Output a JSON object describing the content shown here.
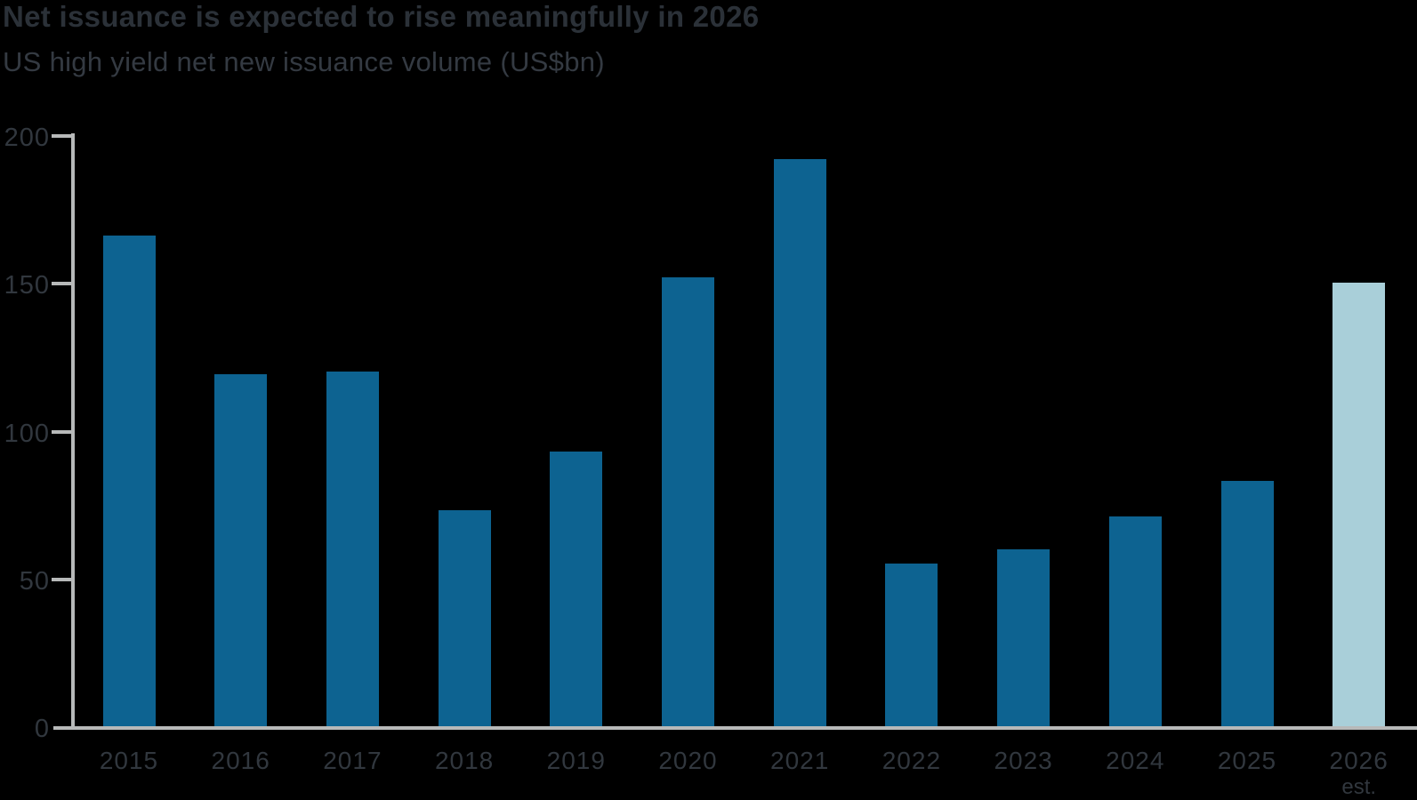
{
  "title": "Net issuance is expected to rise meaningfully in 2026",
  "subtitle": "US high yield net new issuance volume (US$bn)",
  "colors": {
    "background": "#000000",
    "bar_primary": "#0d6391",
    "bar_estimate": "#a9cfd9",
    "axis": "#b7b9b9",
    "text": "#31373e"
  },
  "chart_data": {
    "type": "bar",
    "title": "Net issuance is expected to rise meaningfully in 2026",
    "subtitle": "US high yield net new issuance volume (US$bn)",
    "categories": [
      "2015",
      "2016",
      "2017",
      "2018",
      "2019",
      "2020",
      "2021",
      "2022",
      "2023",
      "2024",
      "2025",
      "2026"
    ],
    "values": [
      166,
      119,
      120,
      73,
      93,
      152,
      192,
      55,
      60,
      71,
      83,
      150
    ],
    "estimate_category": "2026",
    "estimate_suffix": "est.",
    "series_note": "2026 bar is an estimate shown in light blue; all other bars dark blue",
    "xlabel": "",
    "ylabel": "US$bn",
    "ylim": [
      0,
      200
    ],
    "yticks": [
      0,
      50,
      100,
      150,
      200
    ],
    "grid": false,
    "legend": false
  }
}
